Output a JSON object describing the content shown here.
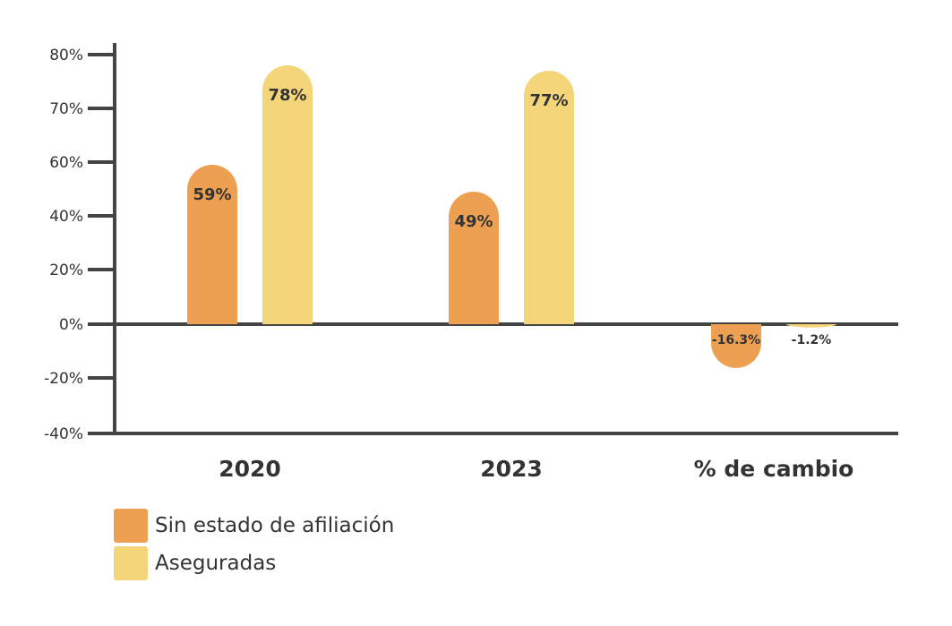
{
  "chart_data": {
    "type": "bar",
    "categories": [
      "2020",
      "2023",
      "% de cambio"
    ],
    "series": [
      {
        "name": "Sin estado de afiliación",
        "color": "#EEA052",
        "values": [
          59,
          49,
          -16.3
        ],
        "labels": [
          "59%",
          "49%",
          "-16.3%"
        ]
      },
      {
        "name": "Aseguradas",
        "color": "#F5D57A",
        "values": [
          78,
          77,
          -1.2
        ],
        "labels": [
          "78%",
          "77%",
          "-1.2%"
        ]
      }
    ],
    "y_ticks": [
      {
        "value": 80,
        "label": "80%"
      },
      {
        "value": 70,
        "label": "70%"
      },
      {
        "value": 60,
        "label": "60%"
      },
      {
        "value": 40,
        "label": "40%"
      },
      {
        "value": 20,
        "label": "20%"
      },
      {
        "value": 0,
        "label": "0%"
      },
      {
        "value": -20,
        "label": "-20%"
      },
      {
        "value": -40,
        "label": "-40%"
      }
    ],
    "axis_color": "#444444",
    "legend_position": "bottom-left",
    "grid": false
  }
}
